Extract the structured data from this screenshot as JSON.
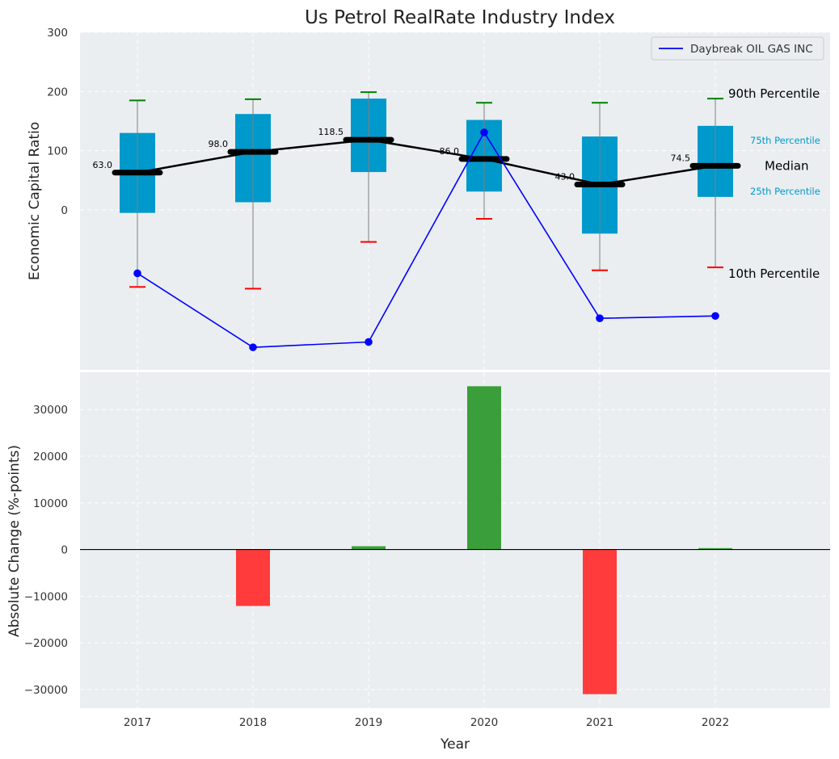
{
  "chart_data": [
    {
      "type": "box",
      "title": "Us Petrol RealRate Industry Index",
      "ylabel": "Economic Capital Ratio",
      "ylim": [
        -270,
        300
      ],
      "yticks": [
        0,
        100,
        200,
        300
      ],
      "categories": [
        "2017",
        "2018",
        "2019",
        "2020",
        "2021",
        "2022"
      ],
      "grid": true,
      "boxes": [
        {
          "year": "2017",
          "p10": -130,
          "p25": -5,
          "median": 63.0,
          "p75": 130,
          "p90": 185,
          "median_label": "63.0"
        },
        {
          "year": "2018",
          "p10": -133,
          "p25": 13,
          "median": 98.0,
          "p75": 162,
          "p90": 187,
          "median_label": "98.0"
        },
        {
          "year": "2019",
          "p10": -54,
          "p25": 64,
          "median": 118.5,
          "p75": 188,
          "p90": 199,
          "median_label": "118.5"
        },
        {
          "year": "2020",
          "p10": -15,
          "p25": 31,
          "median": 86.0,
          "p75": 152,
          "p90": 181,
          "median_label": "86.0"
        },
        {
          "year": "2021",
          "p10": -102,
          "p25": -40,
          "median": 43.0,
          "p75": 124,
          "p90": 181,
          "median_label": "43.0"
        },
        {
          "year": "2022",
          "p10": -97,
          "p25": 22,
          "median": 74.5,
          "p75": 142,
          "p90": 188,
          "median_label": "74.5"
        }
      ],
      "series": [
        {
          "name": "Daybreak OIL GAS INC",
          "color": "#0000ff",
          "values": [
            -107,
            -232,
            -223,
            131,
            -183,
            -179
          ]
        }
      ],
      "legend": {
        "position": "top-right",
        "entries": [
          "Daybreak OIL GAS INC"
        ]
      },
      "annotations": {
        "p90": "90th Percentile",
        "p75": "75th Percentile",
        "median": "Median",
        "p25": "25th Percentile",
        "p10": "10th Percentile"
      },
      "colors": {
        "box": "#0099cc",
        "median_line": "#000000",
        "p90_cap": "#008000",
        "p10_cap": "#ff0000",
        "whisker": "#808080",
        "bg": "#eaeef0"
      }
    },
    {
      "type": "bar",
      "ylabel": "Absolute Change (%-points)",
      "xlabel": "Year",
      "ylim": [
        -34000,
        38000
      ],
      "yticks": [
        -30000,
        -20000,
        -10000,
        0,
        10000,
        20000,
        30000
      ],
      "categories": [
        "2017",
        "2018",
        "2019",
        "2020",
        "2021",
        "2022"
      ],
      "values": [
        0,
        -12100,
        700,
        35000,
        -31000,
        300
      ],
      "tick_labels": [
        "−30000",
        "−20000",
        "−10000",
        "0",
        "10000",
        "20000",
        "30000"
      ],
      "colors": {
        "positive": "#3a9e3a",
        "negative": "#ff3b3b",
        "zero_line": "#000000"
      }
    }
  ]
}
